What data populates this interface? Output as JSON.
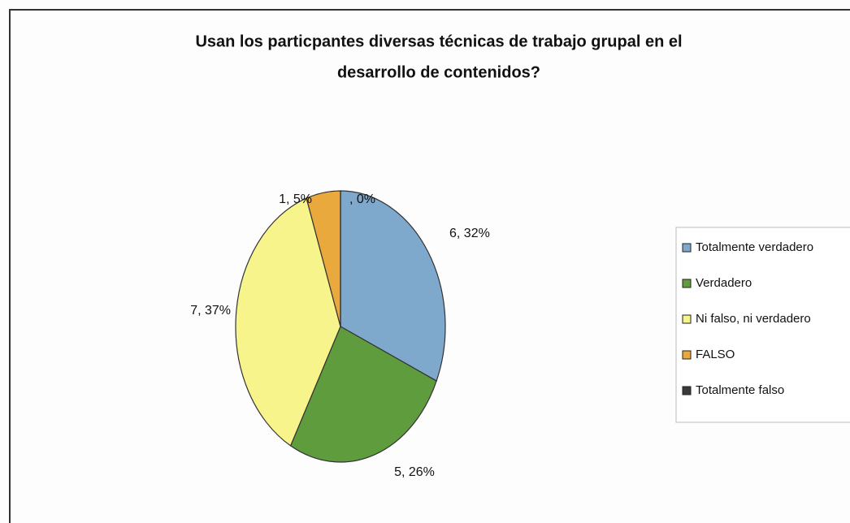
{
  "chart_data": {
    "type": "pie",
    "title": [
      "Usan los particpantes diversas técnicas de trabajo grupal en el",
      "desarrollo de contenidos?"
    ],
    "categories": [
      "Totalmente verdadero",
      "Verdadero",
      "Ni falso, ni verdadero",
      "FALSO",
      "Totalmente falso"
    ],
    "values": [
      6,
      5,
      7,
      1,
      0
    ],
    "value_labels": [
      "6, 32%",
      "5, 26%",
      "7, 37%",
      "1, 5%",
      ", 0%"
    ],
    "colors": [
      "#7fa9cc",
      "#5e9c3e",
      "#f7f48c",
      "#e9a93c",
      "#3a3a3a"
    ],
    "legend": "right"
  }
}
